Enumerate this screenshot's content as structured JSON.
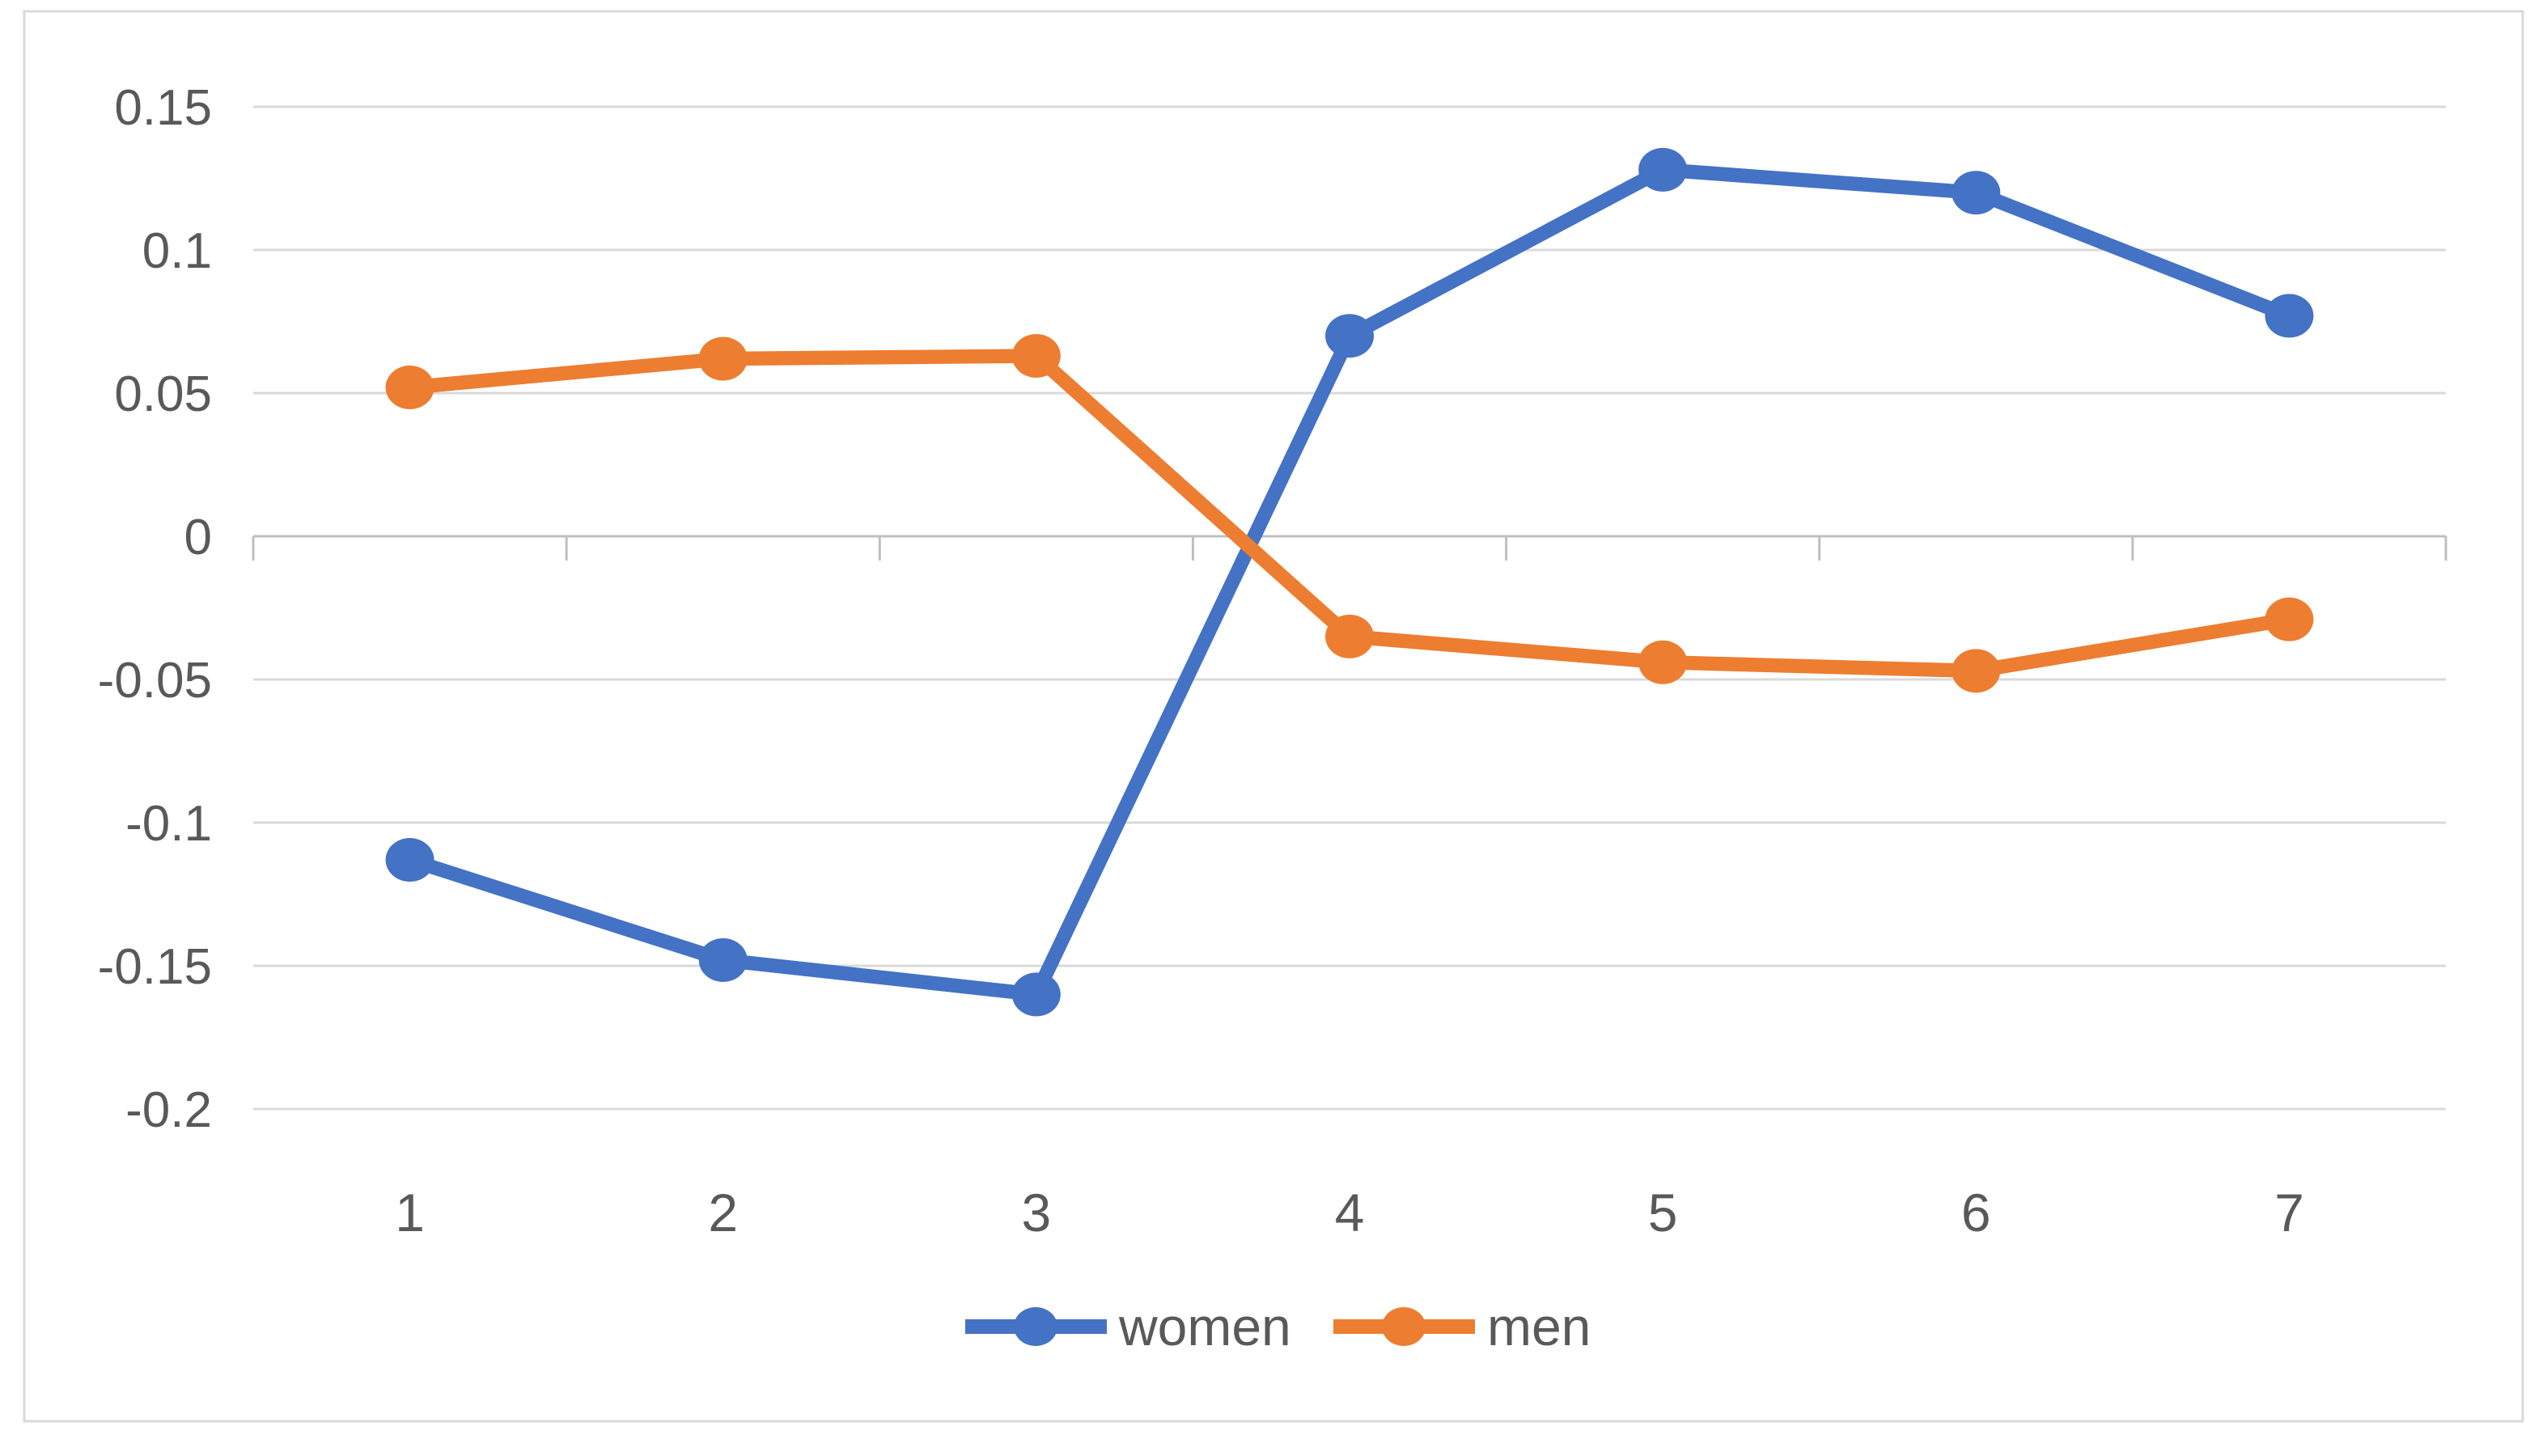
{
  "chart_data": {
    "type": "line",
    "categories": [
      "1",
      "2",
      "3",
      "4",
      "5",
      "6",
      "7"
    ],
    "series": [
      {
        "name": "women",
        "color": "#4472C4",
        "values": [
          -0.113,
          -0.148,
          -0.16,
          0.07,
          0.128,
          0.12,
          0.077
        ]
      },
      {
        "name": "men",
        "color": "#ED7D31",
        "values": [
          0.052,
          0.062,
          0.063,
          -0.035,
          -0.044,
          -0.047,
          -0.029
        ]
      }
    ],
    "title": "",
    "xlabel": "",
    "ylabel": "",
    "ylim": [
      -0.2,
      0.15
    ],
    "ytick_step": 0.05,
    "ytick_labels": [
      "0.15",
      "0.1",
      "0.05",
      "0",
      "-0.05",
      "-0.1",
      "-0.15",
      "-0.2"
    ],
    "xtick_labels": [
      "1",
      "2",
      "3",
      "4",
      "5",
      "6",
      "7"
    ],
    "grid": true,
    "legend_position": "bottom",
    "marker": "circle"
  },
  "styles": {
    "background": "#FFFFFF",
    "border_color": "#D9D9D9",
    "gridline_color": "#D9D9D9",
    "axis_line_color": "#BFBFBF",
    "tick_label_color": "#595959",
    "legend_text_color": "#595959"
  }
}
